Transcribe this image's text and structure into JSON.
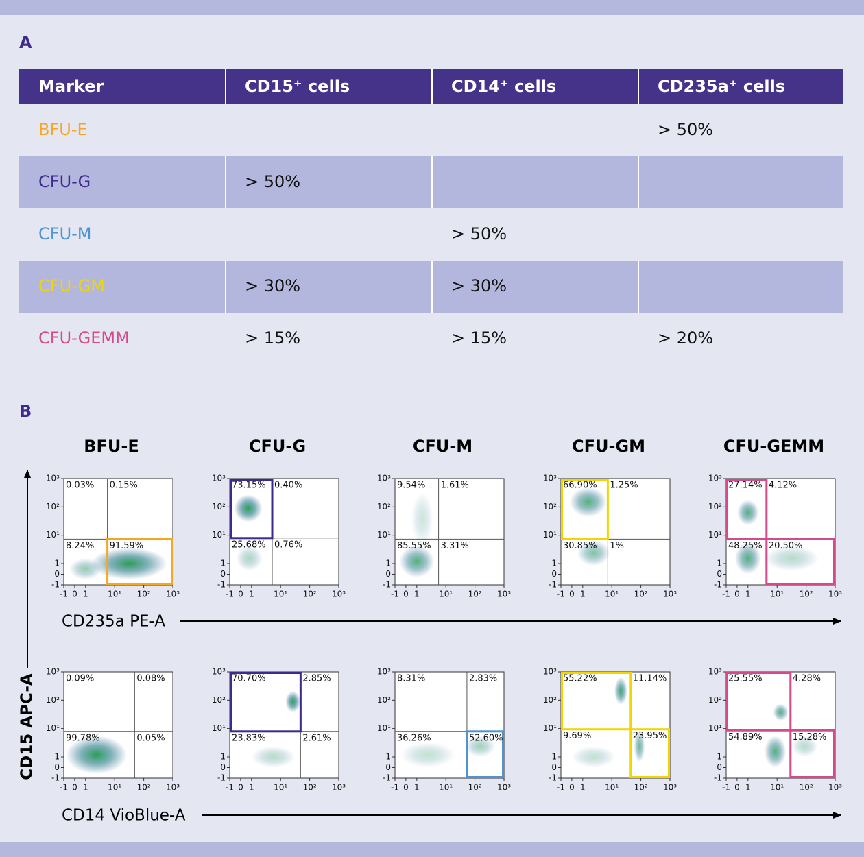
{
  "panel_a": {
    "label": "A",
    "table": {
      "header": [
        "Marker",
        "CD15⁺ cells",
        "CD14⁺ cells",
        "CD235a⁺ cells"
      ],
      "rows": [
        {
          "marker": "BFU-E",
          "color": "#f5a623",
          "cells": [
            null,
            null,
            "> 50%"
          ]
        },
        {
          "marker": "CFU-G",
          "color": "#3d2a8c",
          "cells": [
            "> 50%",
            null,
            null
          ]
        },
        {
          "marker": "CFU-M",
          "color": "#4f94d0",
          "cells": [
            null,
            "> 50%",
            null
          ]
        },
        {
          "marker": "CFU-GM",
          "color": "#f2d600",
          "cells": [
            "> 30%",
            "> 30%",
            null
          ]
        },
        {
          "marker": "CFU-GEMM",
          "color": "#d6498a",
          "cells": [
            "> 15%",
            "> 15%",
            "> 20%"
          ]
        }
      ]
    }
  },
  "panel_b": {
    "label": "B",
    "columns": [
      "BFU-E",
      "CFU-G",
      "CFU-M",
      "CFU-GM",
      "CFU-GEMM"
    ],
    "y_axis_label": "CD15 APC-A",
    "ticks": [
      -1,
      0,
      1,
      {
        "value": 10,
        "label": "10¹"
      },
      {
        "value": 100,
        "label": "10²"
      },
      {
        "value": 1000,
        "label": "10³"
      }
    ],
    "rows": [
      {
        "x_axis_label": "CD235a PE-A",
        "plots": [
          {
            "quadrants": {
              "ul": "0.03%",
              "ur": "0.15%",
              "ll": "8.24%",
              "lr": "91.59%"
            },
            "gates": [
              "lr"
            ]
          },
          {
            "quadrants": {
              "ul": "73.15%",
              "ur": "0.40%",
              "ll": "25.68%",
              "lr": "0.76%"
            },
            "gates": [
              "ul"
            ]
          },
          {
            "quadrants": {
              "ul": "9.54%",
              "ur": "1.61%",
              "ll": "85.55%",
              "lr": "3.31%"
            },
            "gates": []
          },
          {
            "quadrants": {
              "ul": "66.90%",
              "ur": "1.25%",
              "ll": "30.85%",
              "lr": "1%"
            },
            "gates": [
              "ul"
            ]
          },
          {
            "quadrants": {
              "ul": "27.14%",
              "ur": "4.12%",
              "ll": "48.25%",
              "lr": "20.50%"
            },
            "gates": [
              "ul",
              "lr"
            ]
          }
        ]
      },
      {
        "x_axis_label": "CD14 VioBlue-A",
        "plots": [
          {
            "quadrants": {
              "ul": "0.09%",
              "ur": "0.08%",
              "ll": "99.78%",
              "lr": "0.05%"
            },
            "gates": []
          },
          {
            "quadrants": {
              "ul": "70.70%",
              "ur": "2.85%",
              "ll": "23.83%",
              "lr": "2.61%"
            },
            "gates": [
              "ul"
            ]
          },
          {
            "quadrants": {
              "ul": "8.31%",
              "ur": "2.83%",
              "ll": "36.26%",
              "lr": "52.60%"
            },
            "gates": [
              "lr"
            ]
          },
          {
            "quadrants": {
              "ul": "55.22%",
              "ur": "11.14%",
              "ll": "9.69%",
              "lr": "23.95%"
            },
            "gates": [
              "ul",
              "lr"
            ]
          },
          {
            "quadrants": {
              "ul": "25.55%",
              "ur": "4.28%",
              "ll": "54.89%",
              "lr": "15.28%"
            },
            "gates": [
              "ul",
              "lr"
            ]
          }
        ]
      }
    ]
  }
}
